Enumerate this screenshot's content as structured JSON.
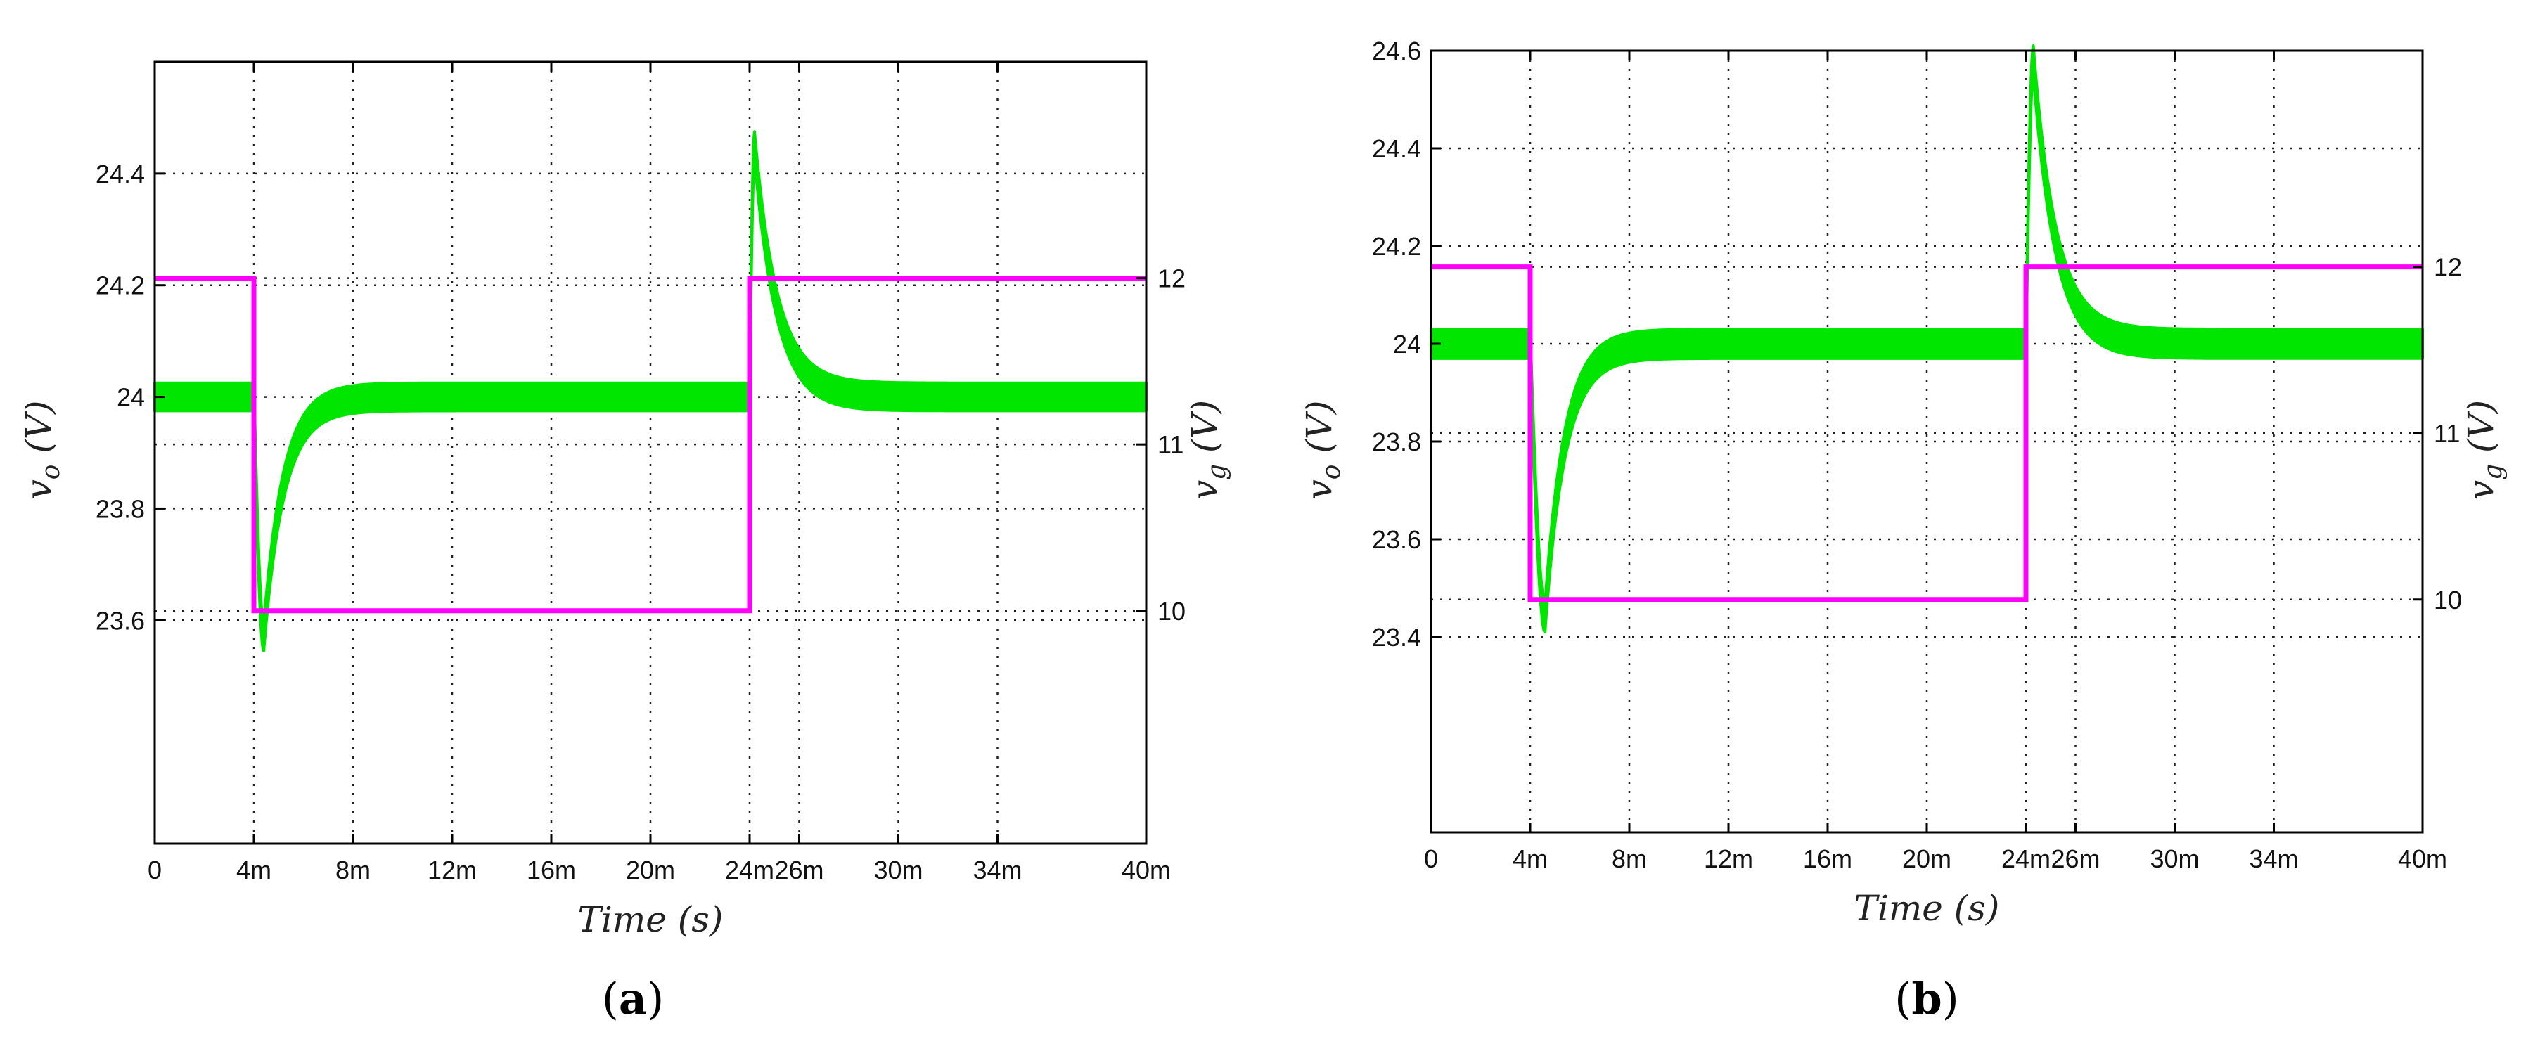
{
  "chart_data": [
    {
      "type": "line",
      "caption": "a",
      "xlabel": "Time (s)",
      "ylabel_left": "v_o (V)",
      "ylabel_right": "v_g (V)",
      "x_unit": "s",
      "xlim": [
        0,
        0.04
      ],
      "x_ticks": [
        0,
        0.004,
        0.008,
        0.012,
        0.016,
        0.02,
        0.024,
        0.026,
        0.03,
        0.034,
        0.04
      ],
      "x_tick_labels": [
        "0",
        "4m",
        "8m",
        "12m",
        "16m",
        "20m",
        "24m",
        "26m",
        "30m",
        "34m",
        "40m"
      ],
      "ylim_left": [
        23.2,
        24.6
      ],
      "y_ticks_left": [
        23.6,
        23.8,
        24,
        24.2,
        24.4
      ],
      "y_tick_labels_left": [
        "23.6",
        "23.8",
        "24",
        "24.2",
        "24.4"
      ],
      "ylim_right": [
        8.6,
        13.3
      ],
      "y_ticks_right": [
        10,
        11,
        12
      ],
      "y_tick_labels_right": [
        "10",
        "11",
        "12"
      ],
      "grid": true,
      "series": [
        {
          "axis": "left",
          "color": "#00e600",
          "band_width_v": 0.05,
          "kind": "vo",
          "baseline": 24.0,
          "dip_time": 0.0044,
          "dip_value": 23.57,
          "spike_time": 0.0242,
          "spike_value": 24.45,
          "settle_value": 24.0
        },
        {
          "axis": "right",
          "color": "#ff00ff",
          "kind": "step",
          "points": [
            [
              0,
              12
            ],
            [
              0.004,
              12
            ],
            [
              0.004,
              10
            ],
            [
              0.024,
              10
            ],
            [
              0.024,
              12
            ],
            [
              0.04,
              12
            ]
          ]
        }
      ]
    },
    {
      "type": "line",
      "caption": "b",
      "xlabel": "Time (s)",
      "ylabel_left": "v_o (V)",
      "ylabel_right": "v_g (V)",
      "x_unit": "s",
      "xlim": [
        0,
        0.04
      ],
      "x_ticks": [
        0,
        0.004,
        0.008,
        0.012,
        0.016,
        0.02,
        0.024,
        0.026,
        0.03,
        0.034,
        0.04
      ],
      "x_tick_labels": [
        "0",
        "4m",
        "8m",
        "12m",
        "16m",
        "20m",
        "24m",
        "26m",
        "30m",
        "34m",
        "40m"
      ],
      "ylim_left": [
        23.0,
        24.6
      ],
      "y_ticks_left": [
        23.4,
        23.6,
        23.8,
        24,
        24.2,
        24.4,
        24.6
      ],
      "y_tick_labels_left": [
        "23.4",
        "23.6",
        "23.8",
        "24",
        "24.2",
        "24.4",
        "24.6"
      ],
      "ylim_right": [
        8.6,
        13.3
      ],
      "y_ticks_right": [
        10,
        11,
        12
      ],
      "y_tick_labels_right": [
        "10",
        "11",
        "12"
      ],
      "grid": true,
      "series": [
        {
          "axis": "left",
          "color": "#00e600",
          "band_width_v": 0.06,
          "kind": "vo",
          "baseline": 24.0,
          "dip_time": 0.0046,
          "dip_value": 23.44,
          "spike_time": 0.0243,
          "spike_value": 24.58,
          "settle_value": 24.0
        },
        {
          "axis": "right",
          "color": "#ff00ff",
          "kind": "step",
          "points": [
            [
              0,
              12
            ],
            [
              0.004,
              12
            ],
            [
              0.004,
              10
            ],
            [
              0.024,
              10
            ],
            [
              0.024,
              12
            ],
            [
              0.04,
              12
            ]
          ]
        }
      ]
    }
  ]
}
